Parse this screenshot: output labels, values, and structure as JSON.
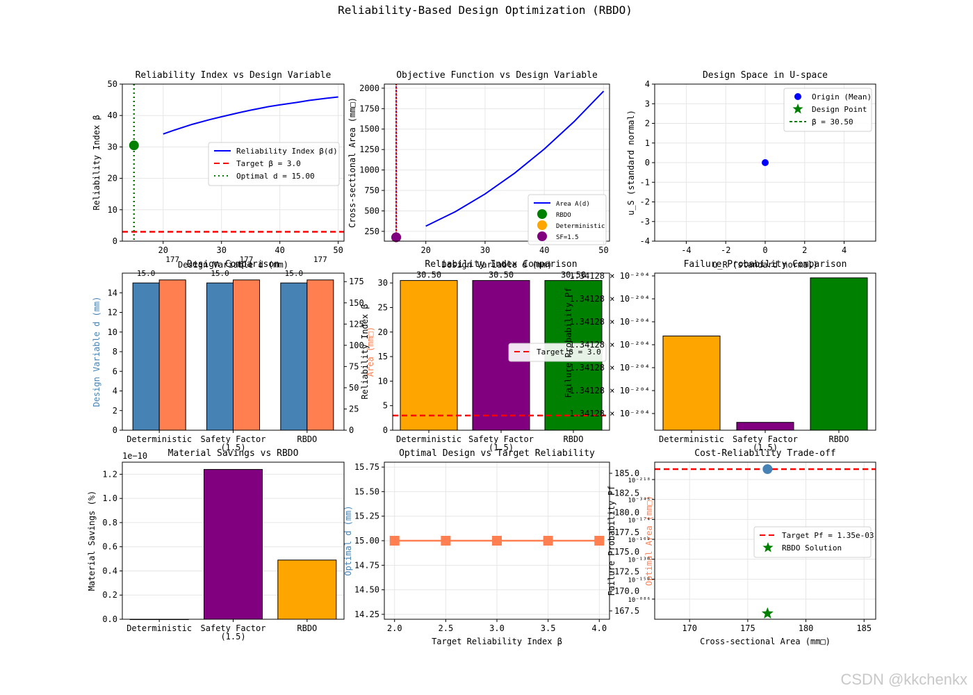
{
  "suptitle": "Reliability-Based Design Optimization (RBDO)",
  "watermark": "CSDN @kkchenkx",
  "colors": {
    "blue": "#0000ff",
    "red": "#ff0000",
    "green": "#008000",
    "orange": "#ffa500",
    "purple": "#800080",
    "steelblue": "#4682b4",
    "coral": "#ff7f50",
    "grid": "#e6e6e6"
  },
  "chart_data": [
    {
      "type": "line",
      "title": "Reliability Index vs Design Variable",
      "xlabel": "Design Variable d (mm)",
      "ylabel": "Reliability Index β",
      "xlim": [
        13,
        51
      ],
      "ylim": [
        0,
        50
      ],
      "xticks": [
        "20",
        "30",
        "40",
        "50"
      ],
      "yticks": [
        "0",
        "10",
        "20",
        "30",
        "40",
        "50"
      ],
      "series": [
        {
          "name": "Reliability Index β(d)",
          "x": [
            20,
            22,
            25,
            28,
            30,
            33,
            35,
            38,
            40,
            43,
            45,
            48,
            50
          ],
          "y": [
            34.1,
            35.4,
            37.2,
            38.7,
            39.6,
            40.9,
            41.7,
            42.8,
            43.4,
            44.2,
            44.8,
            45.5,
            45.9
          ]
        }
      ],
      "target_beta": 3.0,
      "target_label": "Target β = 3.0",
      "optimal_d": 15.0,
      "optimal_label": "Optimal d = 15.00",
      "optimal_point": {
        "x": 15.0,
        "y": 30.5
      },
      "legend": "center-right",
      "grid": true
    },
    {
      "type": "line",
      "title": "Objective Function vs Design Variable",
      "xlabel": "Design Variable d (mm)",
      "ylabel": "Cross-sectional Area (mm□)",
      "xlim": [
        13,
        51
      ],
      "ylim": [
        130,
        2050
      ],
      "xticks": [
        "20",
        "30",
        "40",
        "50"
      ],
      "yticks": [
        "250",
        "500",
        "750",
        "1000",
        "1250",
        "1500",
        "1750",
        "2000"
      ],
      "series": [
        {
          "name": "Area A(d)",
          "x": [
            20,
            25,
            30,
            35,
            40,
            45,
            50
          ],
          "y": [
            314,
            491,
            707,
            962,
            1257,
            1590,
            1963
          ]
        }
      ],
      "points": [
        {
          "name": "RBDO",
          "x": 15,
          "y": 177,
          "color": "#008000"
        },
        {
          "name": "Deterministic",
          "x": 15,
          "y": 177,
          "color": "#ffa500"
        },
        {
          "name": "SF=1.5",
          "x": 15,
          "y": 177,
          "color": "#800080"
        }
      ],
      "legend": "lower-right",
      "grid": true
    },
    {
      "type": "scatter",
      "title": "Design Space in U-space",
      "xlabel": "u_R (standard normal)",
      "ylabel": "u_S (standard normal)",
      "xlim": [
        -5.6,
        5.6
      ],
      "ylim": [
        -4,
        4
      ],
      "xticks": [
        "-4",
        "-2",
        "0",
        "2",
        "4"
      ],
      "yticks": [
        "-4",
        "-3",
        "-2",
        "-1",
        "0",
        "1",
        "2",
        "3",
        "4"
      ],
      "origin": {
        "x": 0,
        "y": 0
      },
      "legend_items": [
        "Origin (Mean)",
        "Design Point",
        "β = 30.50"
      ],
      "legend": "upper-right",
      "grid": true
    },
    {
      "type": "bar",
      "title": "Design Comparison",
      "categories": [
        "Deterministic",
        "Safety Factor\n(1.5)",
        "RBDO"
      ],
      "d_values": [
        15.0,
        15.0,
        15.0
      ],
      "area_values": [
        177,
        177,
        177
      ],
      "d_labels": [
        "15.0",
        "15.0",
        "15.0"
      ],
      "area_labels": [
        "177",
        "177",
        "177"
      ],
      "ylabel_left": "Design Variable d (mm)",
      "ylabel_right": "Area (mm□)",
      "ylim_left": [
        0,
        16
      ],
      "ylim_right": [
        0,
        185
      ],
      "yticks_left": [
        "0",
        "2",
        "4",
        "6",
        "8",
        "10",
        "12",
        "14"
      ],
      "yticks_right": [
        "0",
        "25",
        "50",
        "75",
        "100",
        "125",
        "150",
        "175"
      ]
    },
    {
      "type": "bar",
      "title": "Reliability Index Comparison",
      "categories": [
        "Deterministic",
        "Safety Factor\n(1.5)",
        "RBDO"
      ],
      "values": [
        30.5,
        30.5,
        30.5
      ],
      "value_labels": [
        "30.50",
        "30.50",
        "30.50"
      ],
      "ylabel": "Reliability Index β",
      "ylim": [
        0,
        32
      ],
      "yticks": [
        "0",
        "5",
        "10",
        "15",
        "20",
        "25",
        "30"
      ],
      "target_label": "Target β = 3.0",
      "target": 3.0,
      "legend": "center-right"
    },
    {
      "type": "bar",
      "title": "Failure Probability Comparison",
      "categories": [
        "Deterministic",
        "Safety Factor\n(1.5)",
        "RBDO"
      ],
      "values": [
        0.6,
        0.05,
        0.97
      ],
      "ylabel": "Failure Probability Pf",
      "yticks": [
        "1.34128 × 10⁻²⁰⁴",
        "1.34128 × 10⁻²⁰⁴",
        "1.34128 × 10⁻²⁰⁴",
        "1.34128 × 10⁻²⁰⁴",
        "1.34128 × 10⁻²⁰⁴",
        "1.34128 × 10⁻²⁰⁴",
        "1.34128 × 10⁻²⁰⁴"
      ],
      "ylim": [
        0,
        1
      ]
    },
    {
      "type": "bar",
      "title": "Material Savings vs RBDO",
      "categories": [
        "Deterministic",
        "Safety Factor\n(1.5)",
        "RBDO"
      ],
      "values": [
        0,
        1.24,
        0.49
      ],
      "ylabel": "Material Savings (%)",
      "offset_label": "1e−10",
      "ylim": [
        0,
        1.3
      ],
      "yticks": [
        "0.0",
        "0.2",
        "0.4",
        "0.6",
        "0.8",
        "1.0",
        "1.2"
      ]
    },
    {
      "type": "line",
      "title": "Optimal Design vs Target Reliability",
      "xlabel": "Target Reliability Index β",
      "ylabel_left": "Optimal d (mm)",
      "ylabel_right": "Optimal Area (mm□)",
      "x": [
        2.0,
        2.5,
        3.0,
        3.5,
        4.0
      ],
      "y": [
        15.0,
        15.0,
        15.0,
        15.0,
        15.0
      ],
      "xlim": [
        1.9,
        4.1
      ],
      "ylim_left": [
        14.2,
        15.8
      ],
      "xticks": [
        "2.0",
        "2.5",
        "3.0",
        "3.5",
        "4.0"
      ],
      "yticks_left": [
        "14.25",
        "14.50",
        "14.75",
        "15.00",
        "15.25",
        "15.50",
        "15.75"
      ],
      "yticks_right": [
        "167.5",
        "170.0",
        "172.5",
        "175.0",
        "177.5",
        "180.0",
        "182.5",
        "185.0"
      ],
      "grid": true
    },
    {
      "type": "scatter",
      "title": "Cost-Reliability Trade-off",
      "xlabel": "Cross-sectional Area (mm□)",
      "ylabel": "Failure Probability Pf",
      "xlim": [
        167,
        186
      ],
      "ylim": [
        0,
        1
      ],
      "xticks": [
        "170",
        "175",
        "180",
        "185"
      ],
      "yticks": [
        "10⁻²¹⁸",
        "10⁻³⁴⁶",
        "10⁻¹⁷⁴",
        "10⁻¹⁰²",
        "10⁻¹³⁰",
        "10⁻¹⁵⁸",
        "10⁻⁰⁸⁶"
      ],
      "target_label": "Target Pf = 1.35e-03",
      "rbdo_label": "RBDO Solution",
      "points": [
        {
          "x": 176.7,
          "y": 0.99,
          "color": "#4682b4"
        },
        {
          "x": 176.7,
          "y": 0.05,
          "color": "#008000",
          "marker": "star"
        }
      ],
      "legend": "center-right",
      "grid": true
    }
  ]
}
